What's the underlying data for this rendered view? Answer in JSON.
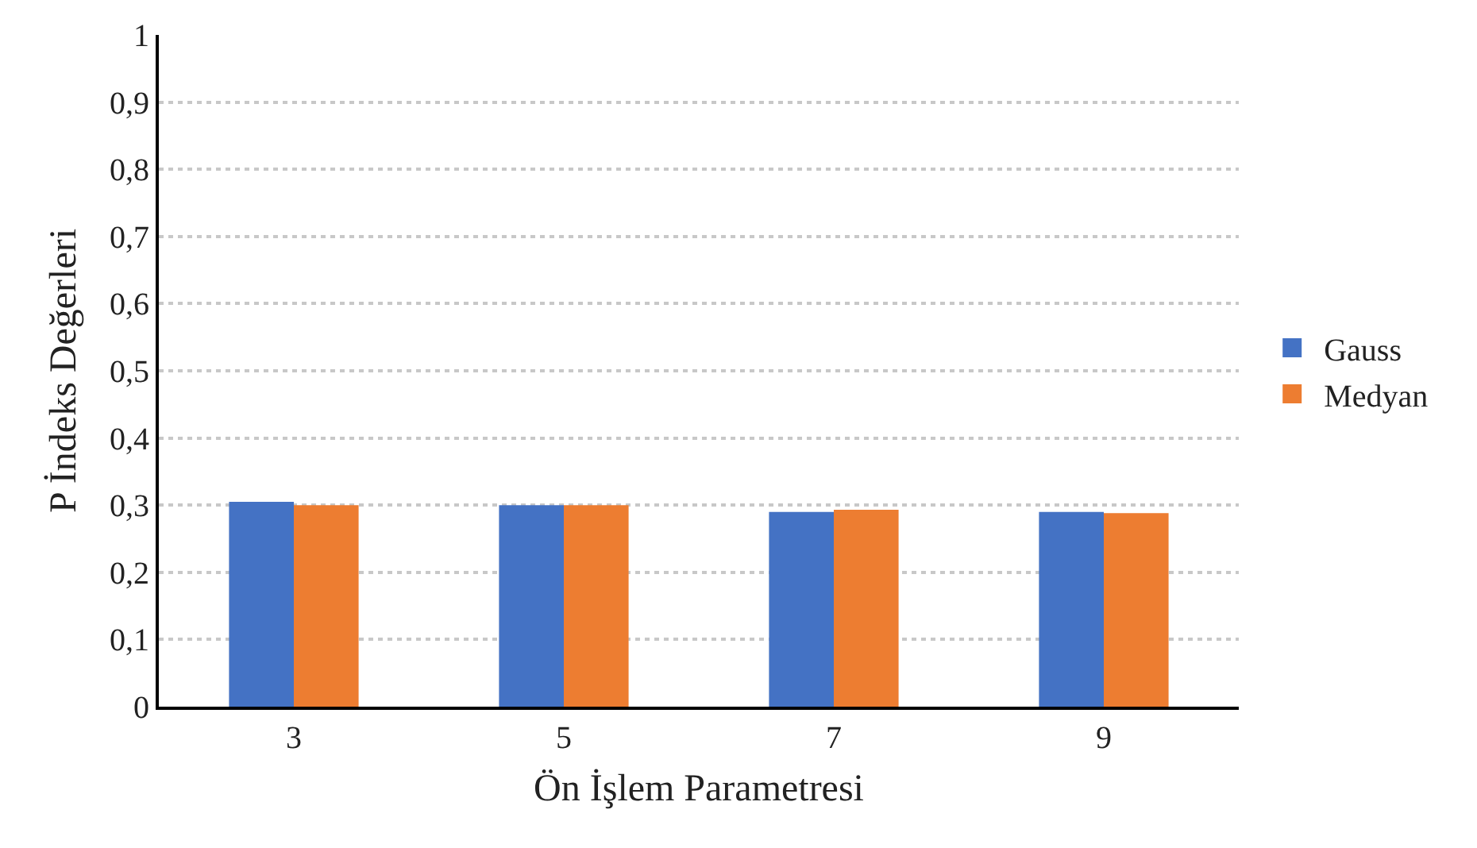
{
  "chart_data": {
    "type": "bar",
    "xlabel": "Ön İşlem Parametresi",
    "ylabel": "P İndeks Değerleri",
    "categories": [
      "3",
      "5",
      "7",
      "9"
    ],
    "series": [
      {
        "name": "Gauss",
        "color": "#4472c4",
        "values": [
          0.305,
          0.3,
          0.29,
          0.29
        ]
      },
      {
        "name": "Medyan",
        "color": "#ed7d31",
        "values": [
          0.3,
          0.3,
          0.293,
          0.288
        ]
      }
    ],
    "ylim": [
      0,
      1
    ],
    "yticks": [
      0,
      {
        "value": 0.1,
        "label": "0,1"
      },
      {
        "value": 0.2,
        "label": "0,2"
      },
      {
        "value": 0.3,
        "label": "0,3"
      },
      {
        "value": 0.4,
        "label": "0,4"
      },
      {
        "value": 0.5,
        "label": "0,5"
      },
      {
        "value": 0.6,
        "label": "0,6"
      },
      {
        "value": 0.7,
        "label": "0,7"
      },
      {
        "value": 0.8,
        "label": "0,8"
      },
      {
        "value": 0.9,
        "label": "0,9"
      },
      1
    ],
    "grid": "y",
    "legend": "right"
  }
}
